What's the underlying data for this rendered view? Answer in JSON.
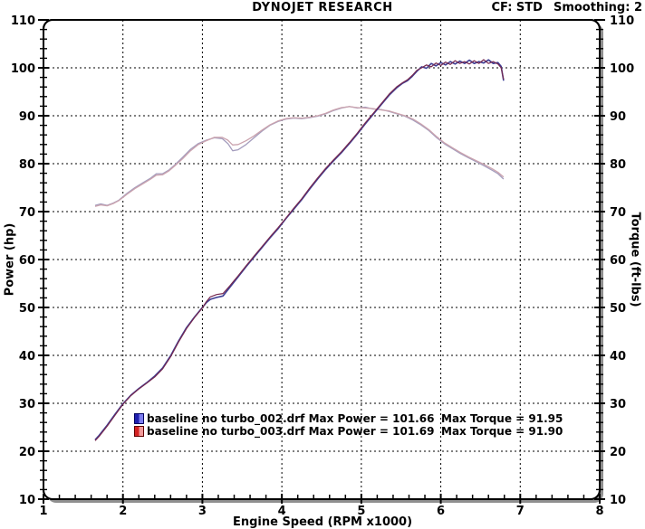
{
  "header": {
    "title": "DYNOJET RESEARCH",
    "cf": "CF: STD",
    "smoothing": "Smoothing: 2"
  },
  "legend": {
    "entries": [
      {
        "file": "baseline no turbo_002.drf",
        "max_power": 101.66,
        "max_torque": 91.95,
        "label": "baseline no turbo_002.drf Max Power = 101.66",
        "torque_label": "Max Torque = 91.95",
        "swatch_dark": "#1f1fae",
        "swatch_light": "#7d7df0",
        "swatch_border": "#00005e"
      },
      {
        "file": "baseline no turbo_003.drf",
        "max_power": 101.69,
        "max_torque": 91.9,
        "label": "baseline no turbo_003.drf Max Power = 101.69",
        "torque_label": "Max Torque = 91.90",
        "swatch_dark": "#d42222",
        "swatch_light": "#f29a9a",
        "swatch_border": "#5e0000"
      }
    ]
  },
  "chart_data": {
    "type": "line",
    "title": "DYNOJET RESEARCH",
    "xlabel": "Engine Speed (RPM x1000)",
    "ylabel_left": "Power (hp)",
    "ylabel_right": "Torque (ft-lbs)",
    "xlim": [
      1,
      8
    ],
    "ylim": [
      10,
      110
    ],
    "x_ticks": [
      1,
      2,
      3,
      4,
      5,
      6,
      7,
      8
    ],
    "y_ticks": [
      10,
      20,
      30,
      40,
      50,
      60,
      70,
      80,
      90,
      100,
      110
    ],
    "x_minor_step": 0.2,
    "y_minor_step": 2,
    "grid": "dashed-black",
    "shadow_color": "#8f8f8f",
    "frame_color": "#000000",
    "legend_position": "inside-bottom-center",
    "series": [
      {
        "name": "torque_002",
        "axis": "right",
        "units": "ft-lbs",
        "color": "#a49dbd",
        "width": 1.3,
        "points": [
          [
            1.65,
            71.3
          ],
          [
            1.72,
            71.6
          ],
          [
            1.8,
            71.3
          ],
          [
            1.88,
            71.8
          ],
          [
            1.95,
            72.4
          ],
          [
            2.05,
            73.8
          ],
          [
            2.15,
            75.0
          ],
          [
            2.25,
            76.0
          ],
          [
            2.35,
            77.0
          ],
          [
            2.42,
            77.9
          ],
          [
            2.5,
            77.9
          ],
          [
            2.58,
            78.7
          ],
          [
            2.65,
            79.7
          ],
          [
            2.75,
            81.3
          ],
          [
            2.85,
            83.0
          ],
          [
            2.95,
            84.2
          ],
          [
            3.05,
            84.9
          ],
          [
            3.15,
            85.4
          ],
          [
            3.25,
            85.2
          ],
          [
            3.32,
            84.2
          ],
          [
            3.38,
            82.7
          ],
          [
            3.45,
            82.9
          ],
          [
            3.55,
            84.0
          ],
          [
            3.65,
            85.4
          ],
          [
            3.75,
            86.8
          ],
          [
            3.85,
            88.0
          ],
          [
            3.95,
            88.8
          ],
          [
            4.05,
            89.3
          ],
          [
            4.15,
            89.5
          ],
          [
            4.25,
            89.4
          ],
          [
            4.35,
            89.6
          ],
          [
            4.45,
            89.9
          ],
          [
            4.55,
            90.4
          ],
          [
            4.65,
            91.1
          ],
          [
            4.75,
            91.6
          ],
          [
            4.85,
            91.95
          ],
          [
            4.95,
            91.6
          ],
          [
            5.05,
            91.8
          ],
          [
            5.15,
            91.4
          ],
          [
            5.25,
            91.3
          ],
          [
            5.35,
            90.9
          ],
          [
            5.45,
            90.4
          ],
          [
            5.55,
            89.9
          ],
          [
            5.65,
            89.1
          ],
          [
            5.75,
            88.1
          ],
          [
            5.85,
            86.9
          ],
          [
            5.95,
            85.4
          ],
          [
            6.05,
            84.1
          ],
          [
            6.15,
            83.1
          ],
          [
            6.25,
            82.1
          ],
          [
            6.35,
            81.2
          ],
          [
            6.45,
            80.4
          ],
          [
            6.55,
            79.5
          ],
          [
            6.65,
            78.6
          ],
          [
            6.72,
            77.9
          ],
          [
            6.79,
            76.8
          ]
        ]
      },
      {
        "name": "torque_003",
        "axis": "right",
        "units": "ft-lbs",
        "color": "#cba3ae",
        "width": 1.3,
        "points": [
          [
            1.65,
            71.1
          ],
          [
            1.72,
            71.4
          ],
          [
            1.8,
            71.2
          ],
          [
            1.88,
            71.7
          ],
          [
            1.95,
            72.3
          ],
          [
            2.05,
            73.6
          ],
          [
            2.15,
            74.8
          ],
          [
            2.25,
            75.8
          ],
          [
            2.35,
            76.8
          ],
          [
            2.42,
            77.6
          ],
          [
            2.5,
            77.7
          ],
          [
            2.58,
            78.5
          ],
          [
            2.65,
            79.5
          ],
          [
            2.75,
            81.0
          ],
          [
            2.85,
            82.7
          ],
          [
            2.95,
            84.0
          ],
          [
            3.05,
            84.8
          ],
          [
            3.15,
            85.5
          ],
          [
            3.25,
            85.5
          ],
          [
            3.32,
            84.9
          ],
          [
            3.38,
            83.9
          ],
          [
            3.45,
            84.0
          ],
          [
            3.55,
            84.8
          ],
          [
            3.65,
            85.8
          ],
          [
            3.75,
            87.0
          ],
          [
            3.85,
            88.1
          ],
          [
            3.95,
            88.9
          ],
          [
            4.05,
            89.4
          ],
          [
            4.15,
            89.6
          ],
          [
            4.25,
            89.5
          ],
          [
            4.35,
            89.7
          ],
          [
            4.45,
            90.0
          ],
          [
            4.55,
            90.5
          ],
          [
            4.65,
            91.2
          ],
          [
            4.75,
            91.7
          ],
          [
            4.85,
            91.9
          ],
          [
            4.95,
            91.7
          ],
          [
            5.05,
            91.6
          ],
          [
            5.15,
            91.5
          ],
          [
            5.25,
            91.2
          ],
          [
            5.35,
            91.0
          ],
          [
            5.45,
            90.5
          ],
          [
            5.55,
            90.0
          ],
          [
            5.65,
            89.3
          ],
          [
            5.75,
            88.3
          ],
          [
            5.85,
            87.1
          ],
          [
            5.95,
            85.6
          ],
          [
            6.05,
            84.3
          ],
          [
            6.15,
            83.3
          ],
          [
            6.25,
            82.3
          ],
          [
            6.35,
            81.4
          ],
          [
            6.45,
            80.6
          ],
          [
            6.55,
            79.8
          ],
          [
            6.65,
            78.9
          ],
          [
            6.72,
            78.2
          ],
          [
            6.79,
            77.2
          ]
        ]
      },
      {
        "name": "power_002",
        "axis": "left",
        "units": "hp",
        "color": "#3d3d94",
        "width": 1.6,
        "points": [
          [
            1.65,
            22.4
          ],
          [
            1.7,
            23.3
          ],
          [
            1.8,
            25.4
          ],
          [
            1.9,
            27.7
          ],
          [
            2.0,
            29.9
          ],
          [
            2.1,
            31.7
          ],
          [
            2.2,
            33.1
          ],
          [
            2.3,
            34.3
          ],
          [
            2.4,
            35.7
          ],
          [
            2.5,
            37.4
          ],
          [
            2.6,
            39.9
          ],
          [
            2.7,
            43.0
          ],
          [
            2.8,
            45.8
          ],
          [
            2.9,
            48.0
          ],
          [
            3.0,
            50.0
          ],
          [
            3.05,
            51.0
          ],
          [
            3.1,
            51.7
          ],
          [
            3.18,
            52.1
          ],
          [
            3.26,
            52.4
          ],
          [
            3.35,
            54.3
          ],
          [
            3.45,
            56.4
          ],
          [
            3.55,
            58.5
          ],
          [
            3.65,
            60.5
          ],
          [
            3.75,
            62.5
          ],
          [
            3.85,
            64.5
          ],
          [
            3.95,
            66.4
          ],
          [
            4.05,
            68.5
          ],
          [
            4.15,
            70.5
          ],
          [
            4.25,
            72.5
          ],
          [
            4.35,
            74.7
          ],
          [
            4.45,
            76.8
          ],
          [
            4.55,
            78.8
          ],
          [
            4.65,
            80.6
          ],
          [
            4.75,
            82.3
          ],
          [
            4.85,
            84.2
          ],
          [
            4.95,
            86.2
          ],
          [
            5.05,
            88.3
          ],
          [
            5.15,
            90.3
          ],
          [
            5.25,
            92.3
          ],
          [
            5.35,
            94.3
          ],
          [
            5.45,
            95.9
          ],
          [
            5.52,
            96.8
          ],
          [
            5.58,
            97.3
          ],
          [
            5.64,
            98.2
          ],
          [
            5.7,
            99.3
          ],
          [
            5.76,
            100.2
          ],
          [
            5.82,
            99.9
          ],
          [
            5.88,
            100.9
          ],
          [
            5.94,
            100.4
          ],
          [
            6.0,
            101.1
          ],
          [
            6.06,
            100.6
          ],
          [
            6.12,
            101.3
          ],
          [
            6.18,
            100.8
          ],
          [
            6.24,
            101.4
          ],
          [
            6.3,
            100.9
          ],
          [
            6.36,
            101.6
          ],
          [
            6.42,
            100.9
          ],
          [
            6.48,
            101.3
          ],
          [
            6.54,
            101.0
          ],
          [
            6.6,
            101.66
          ],
          [
            6.66,
            100.9
          ],
          [
            6.72,
            101.1
          ],
          [
            6.76,
            100.3
          ],
          [
            6.79,
            97.3
          ]
        ]
      },
      {
        "name": "power_003",
        "axis": "left",
        "units": "hp",
        "color": "#76284f",
        "width": 1.2,
        "points": [
          [
            1.65,
            22.2
          ],
          [
            1.7,
            23.1
          ],
          [
            1.8,
            25.2
          ],
          [
            1.9,
            27.5
          ],
          [
            2.0,
            29.8
          ],
          [
            2.1,
            31.6
          ],
          [
            2.2,
            33.0
          ],
          [
            2.3,
            34.2
          ],
          [
            2.4,
            35.5
          ],
          [
            2.5,
            37.2
          ],
          [
            2.6,
            39.7
          ],
          [
            2.7,
            42.8
          ],
          [
            2.8,
            45.6
          ],
          [
            2.9,
            47.9
          ],
          [
            3.0,
            49.9
          ],
          [
            3.05,
            51.2
          ],
          [
            3.1,
            52.2
          ],
          [
            3.18,
            52.7
          ],
          [
            3.26,
            52.9
          ],
          [
            3.35,
            54.6
          ],
          [
            3.45,
            56.6
          ],
          [
            3.55,
            58.7
          ],
          [
            3.65,
            60.7
          ],
          [
            3.75,
            62.7
          ],
          [
            3.85,
            64.7
          ],
          [
            3.95,
            66.6
          ],
          [
            4.05,
            68.6
          ],
          [
            4.15,
            70.7
          ],
          [
            4.25,
            72.7
          ],
          [
            4.35,
            74.9
          ],
          [
            4.45,
            77.0
          ],
          [
            4.55,
            79.0
          ],
          [
            4.65,
            80.8
          ],
          [
            4.75,
            82.5
          ],
          [
            4.85,
            84.4
          ],
          [
            4.95,
            86.4
          ],
          [
            5.05,
            88.5
          ],
          [
            5.15,
            90.5
          ],
          [
            5.25,
            92.5
          ],
          [
            5.35,
            94.5
          ],
          [
            5.45,
            96.1
          ],
          [
            5.52,
            96.9
          ],
          [
            5.58,
            97.5
          ],
          [
            5.64,
            98.4
          ],
          [
            5.7,
            99.5
          ],
          [
            5.76,
            100.0
          ],
          [
            5.82,
            100.6
          ],
          [
            5.88,
            100.2
          ],
          [
            5.94,
            101.0
          ],
          [
            6.0,
            100.5
          ],
          [
            6.06,
            101.2
          ],
          [
            6.12,
            100.7
          ],
          [
            6.18,
            101.5
          ],
          [
            6.24,
            100.9
          ],
          [
            6.3,
            101.3
          ],
          [
            6.36,
            100.8
          ],
          [
            6.42,
            101.5
          ],
          [
            6.48,
            100.9
          ],
          [
            6.54,
            101.69
          ],
          [
            6.6,
            100.9
          ],
          [
            6.66,
            101.3
          ],
          [
            6.72,
            100.8
          ],
          [
            6.76,
            100.0
          ],
          [
            6.79,
            97.6
          ]
        ]
      }
    ]
  }
}
